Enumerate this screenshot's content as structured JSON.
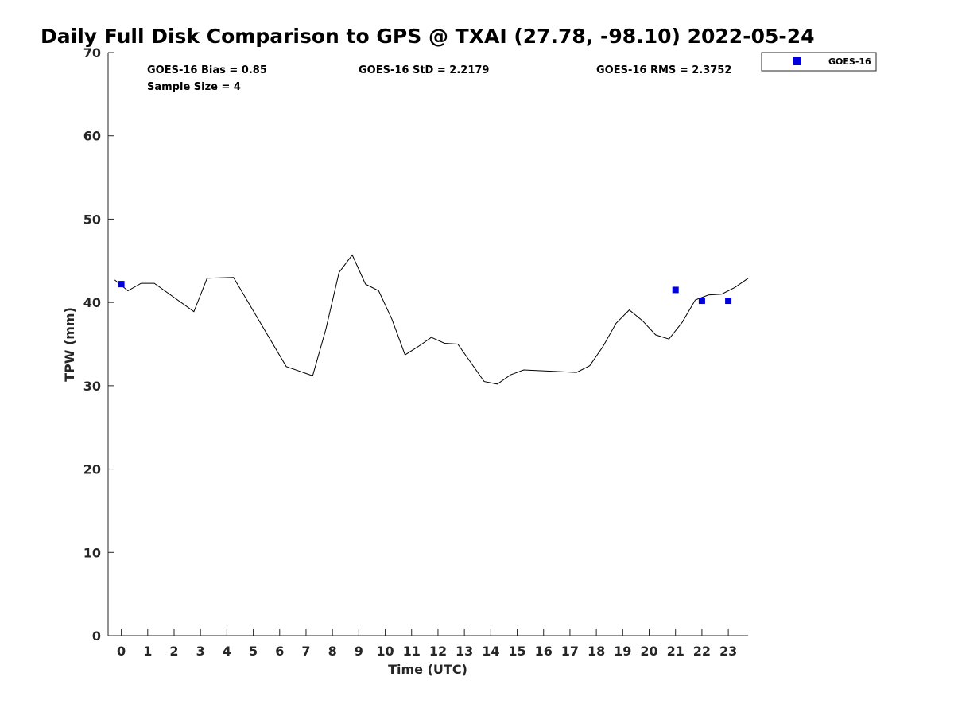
{
  "chart_data": {
    "type": "line",
    "title": "Daily Full Disk Comparison to GPS @ TXAI (27.78, -98.10) 2022-05-24",
    "xlabel": "Time (UTC)",
    "ylabel": "TPW (mm)",
    "xlim": [
      -0.5,
      23.75
    ],
    "ylim": [
      0,
      70
    ],
    "x_ticks": [
      0,
      1,
      2,
      3,
      4,
      5,
      6,
      7,
      8,
      9,
      10,
      11,
      12,
      13,
      14,
      15,
      16,
      17,
      18,
      19,
      20,
      21,
      22,
      23
    ],
    "y_ticks": [
      0,
      10,
      20,
      30,
      40,
      50,
      60,
      70
    ],
    "grid": false,
    "legend_position": "top-right, outside plot",
    "stats": {
      "bias": "GOES-16 Bias = 0.85",
      "std": "GOES-16 StD = 2.2179",
      "rms": "GOES-16 RMS = 2.3752",
      "sample_size": "Sample Size = 4"
    },
    "series": [
      {
        "style": "line",
        "color": "#000000",
        "points": [
          [
            -0.25,
            42.7
          ],
          [
            0.25,
            41.4
          ],
          [
            0.75,
            42.3
          ],
          [
            1.25,
            42.3
          ],
          [
            2.75,
            38.9
          ],
          [
            3.25,
            42.9
          ],
          [
            4.25,
            43.0
          ],
          [
            6.25,
            32.3
          ],
          [
            7.25,
            31.2
          ],
          [
            7.75,
            36.8
          ],
          [
            8.25,
            43.6
          ],
          [
            8.75,
            45.7
          ],
          [
            9.25,
            42.2
          ],
          [
            9.75,
            41.4
          ],
          [
            10.25,
            38.0
          ],
          [
            10.75,
            33.7
          ],
          [
            11.25,
            34.7
          ],
          [
            11.75,
            35.8
          ],
          [
            12.25,
            35.1
          ],
          [
            12.75,
            35.0
          ],
          [
            13.75,
            30.5
          ],
          [
            14.25,
            30.2
          ],
          [
            14.75,
            31.3
          ],
          [
            15.25,
            31.9
          ],
          [
            17.25,
            31.6
          ],
          [
            17.75,
            32.4
          ],
          [
            18.25,
            34.7
          ],
          [
            18.75,
            37.5
          ],
          [
            19.25,
            39.1
          ],
          [
            19.75,
            37.8
          ],
          [
            20.25,
            36.1
          ],
          [
            20.75,
            35.6
          ],
          [
            21.25,
            37.6
          ],
          [
            21.75,
            40.3
          ],
          [
            22.25,
            40.9
          ],
          [
            22.75,
            41.0
          ],
          [
            23.25,
            41.8
          ],
          [
            23.75,
            42.9
          ]
        ]
      },
      {
        "name": "GOES-16",
        "style": "marker",
        "color": "#0000dd",
        "points": [
          [
            0,
            42.2
          ],
          [
            21,
            41.5
          ],
          [
            22,
            40.2
          ],
          [
            23,
            40.2
          ]
        ]
      }
    ]
  }
}
